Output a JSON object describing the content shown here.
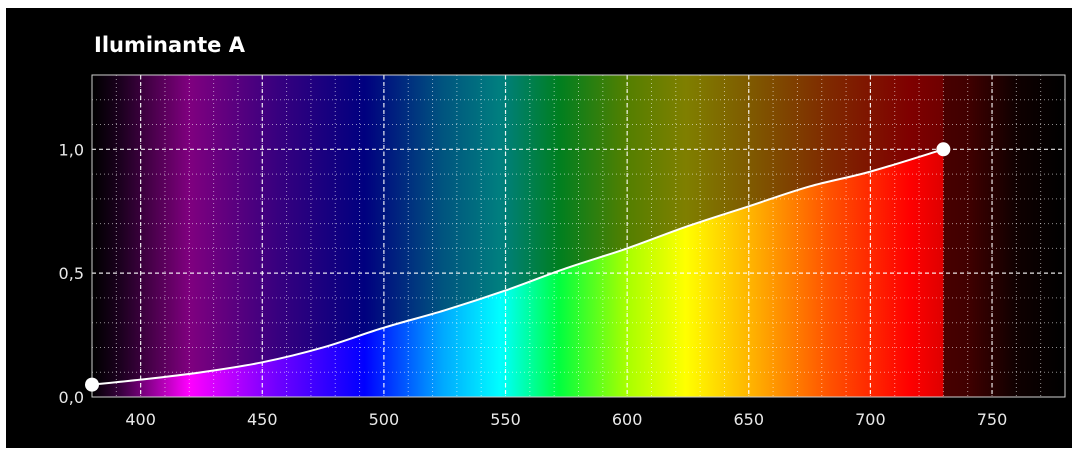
{
  "chart_data": {
    "type": "line",
    "title": "Iluminante A",
    "xlabel": "",
    "ylabel": "",
    "xlim": [
      380,
      780
    ],
    "ylim": [
      0,
      1.3
    ],
    "x_ticks": [
      400,
      450,
      500,
      550,
      600,
      650,
      700,
      750
    ],
    "x_tick_labels": [
      "400",
      "450",
      "500",
      "550",
      "600",
      "650",
      "700",
      "750"
    ],
    "y_ticks": [
      0,
      0.5,
      1.0
    ],
    "y_tick_labels": [
      "0,0",
      "0,5",
      "1,0"
    ],
    "grid": true,
    "background": "visible spectrum gradient",
    "series": [
      {
        "color": "#ffffff",
        "x": [
          380,
          400,
          425,
          450,
          475,
          500,
          525,
          550,
          575,
          600,
          625,
          650,
          675,
          700,
          730
        ],
        "y": [
          0.05,
          0.07,
          0.1,
          0.14,
          0.2,
          0.28,
          0.35,
          0.43,
          0.52,
          0.6,
          0.69,
          0.77,
          0.85,
          0.91,
          1.0
        ]
      }
    ],
    "endpoints": [
      {
        "x": 380,
        "y": 0.05
      },
      {
        "x": 730,
        "y": 1.0
      }
    ]
  }
}
